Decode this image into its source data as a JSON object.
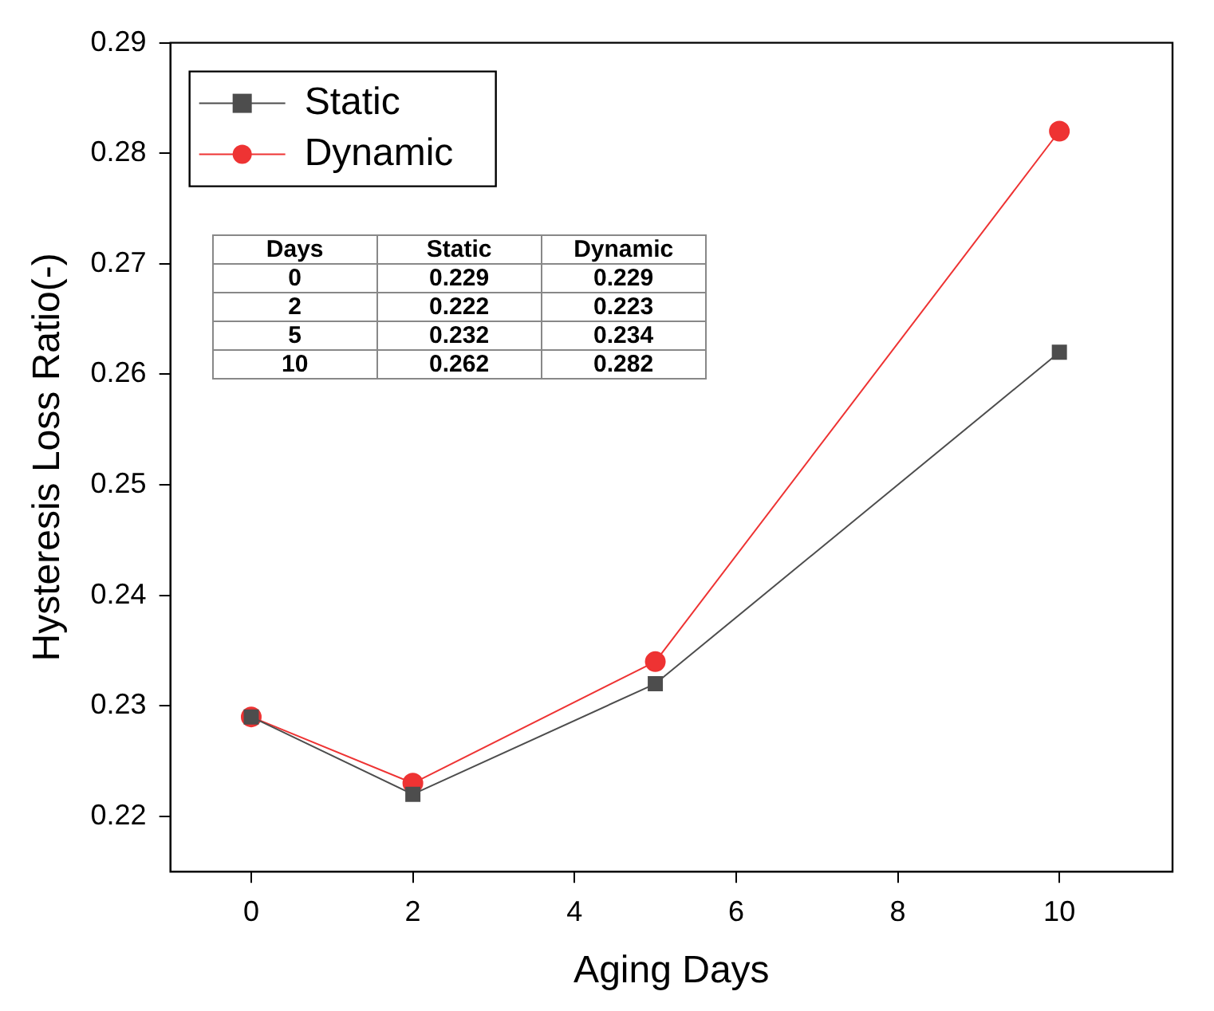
{
  "chart_data": {
    "type": "line",
    "xlabel": "Aging Days",
    "ylabel": "Hysteresis Loss Ratio(-)",
    "x": [
      0,
      2,
      5,
      10
    ],
    "series": [
      {
        "name": "Static",
        "color": "#4d4d4d",
        "marker": "square",
        "values": [
          0.229,
          0.222,
          0.232,
          0.262
        ]
      },
      {
        "name": "Dynamic",
        "color": "#ee3333",
        "marker": "circle",
        "values": [
          0.229,
          0.223,
          0.234,
          0.282
        ]
      }
    ],
    "xlim": [
      -1,
      11.4
    ],
    "xticks": [
      0,
      2,
      4,
      6,
      8,
      10
    ],
    "ylim": [
      0.215,
      0.29
    ],
    "yticks": [
      0.22,
      0.23,
      0.24,
      0.25,
      0.26,
      0.27,
      0.28,
      0.29
    ],
    "grid": false,
    "legend": "top left",
    "annotations": [
      "Days",
      "Static",
      "Dynamic",
      "0",
      "0.229",
      "0.229",
      "2",
      "0.222",
      "0.223",
      "5",
      "0.232",
      "0.234",
      "10",
      "0.262",
      "0.282"
    ]
  }
}
